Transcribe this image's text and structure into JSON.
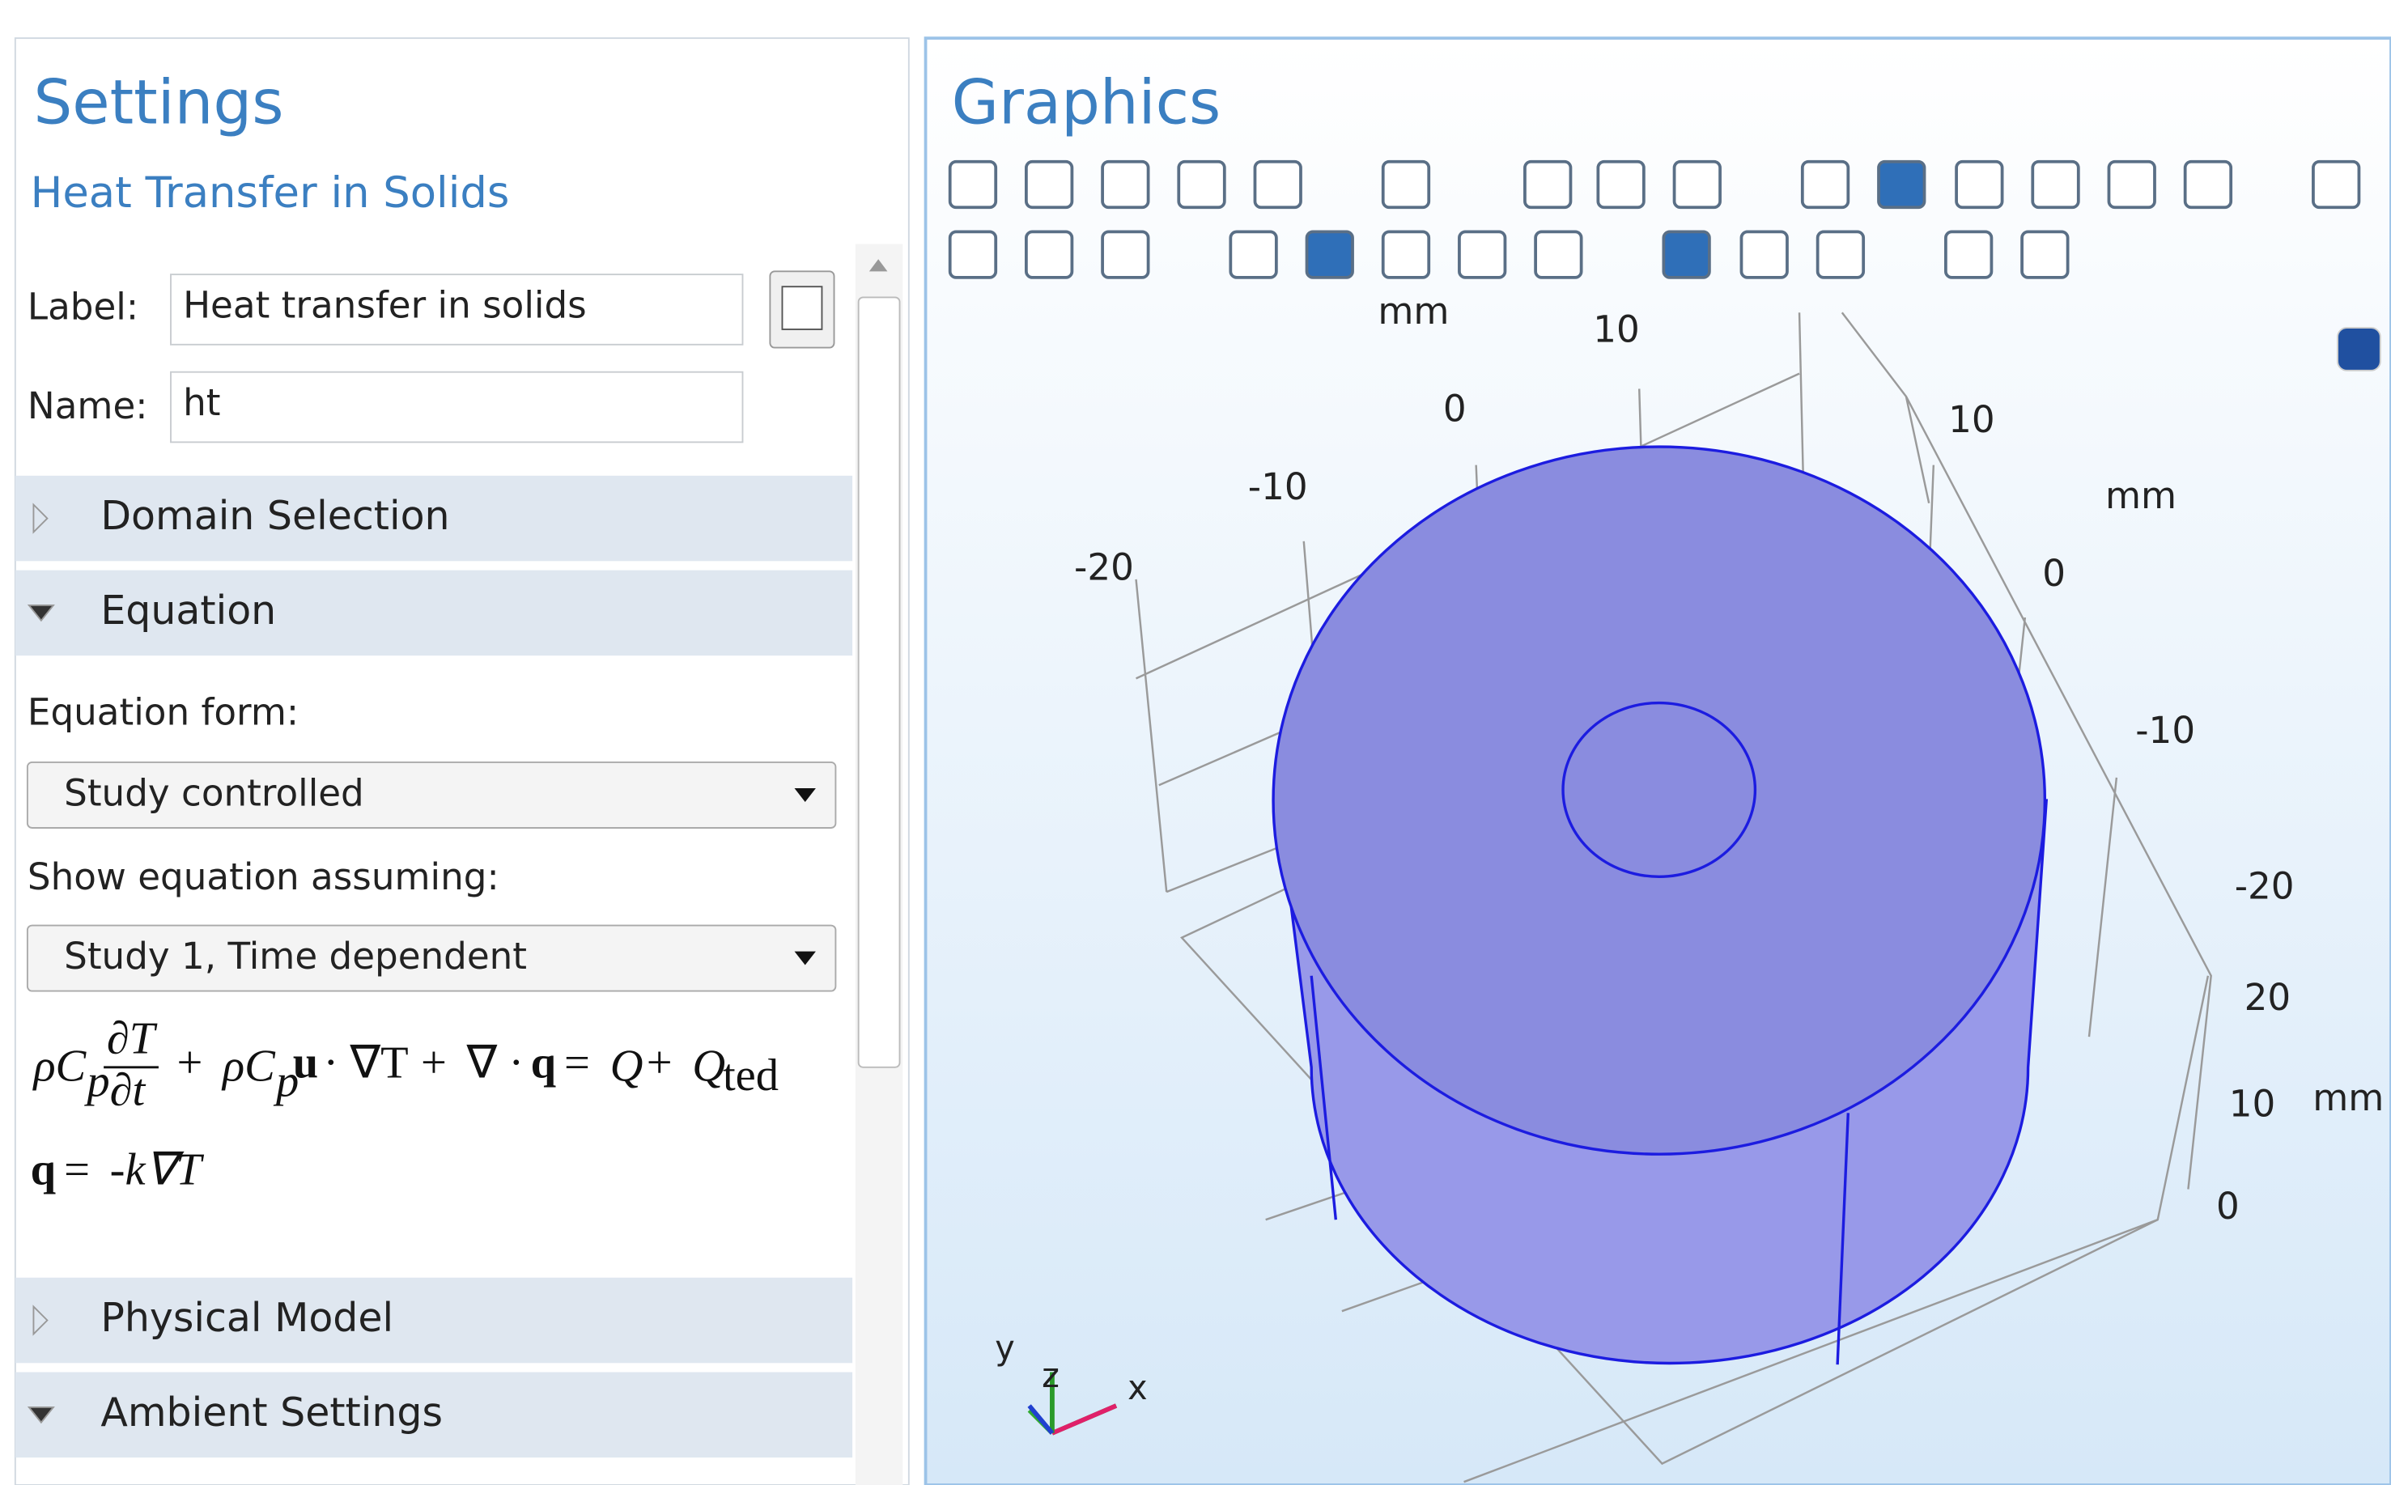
{
  "settings": {
    "title": "Settings",
    "subtitle": "Heat Transfer in Solids",
    "label_caption": "Label:",
    "label_value": "Heat transfer in solids",
    "name_caption": "Name:",
    "name_value": "ht",
    "sections": [
      "Domain Selection",
      "Equation",
      "Physical Model",
      "Ambient Settings"
    ],
    "equation_form_caption": "Equation form:",
    "equation_form_value": "Study controlled",
    "show_equation_caption": "Show equation assuming:",
    "show_equation_value": "Study 1, Time dependent",
    "equation_1": [
      "ρC",
      "p",
      "∂T",
      "∂t",
      "+",
      "ρC",
      "p",
      "u",
      "· ∇T",
      "+",
      "∇ ·",
      "q",
      "=",
      "Q",
      "+",
      "Q",
      "ted"
    ],
    "equation_2": [
      "q",
      "=",
      "-k∇T"
    ]
  },
  "graphics": {
    "title": "Graphics",
    "axis_labels": [
      "mm",
      "10",
      "0",
      "10",
      "-10",
      "mm",
      "-20",
      "0",
      "-10",
      "-20",
      "20",
      "10",
      "mm",
      "0"
    ],
    "triad": [
      "y",
      "z",
      "x"
    ]
  }
}
